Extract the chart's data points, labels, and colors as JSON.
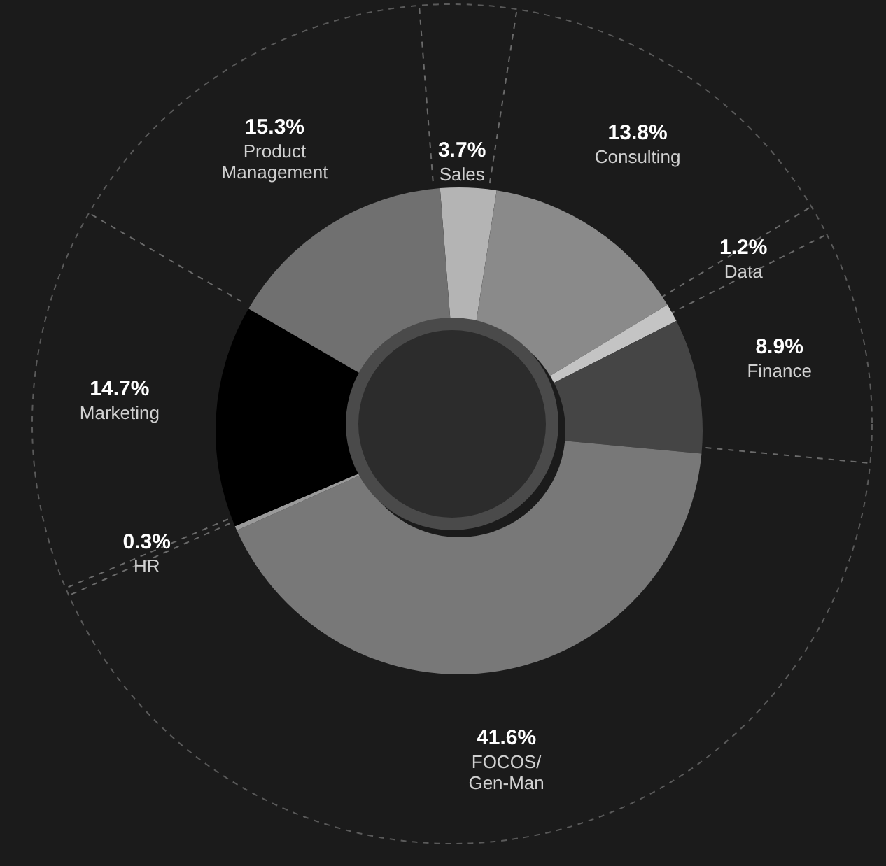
{
  "chart_data": {
    "type": "donut",
    "categories": [
      "Sales",
      "Consulting",
      "Data",
      "Finance",
      "FOCOS/\nGen-Man",
      "HR",
      "Marketing",
      "Product\nManagement"
    ],
    "values": [
      3.7,
      13.8,
      1.2,
      8.9,
      41.6,
      0.3,
      14.7,
      15.3
    ],
    "value_labels": [
      "3.7%",
      "13.8%",
      "1.2%",
      "8.9%",
      "41.6%",
      "0.3%",
      "14.7%",
      "15.3%"
    ],
    "colors": [
      "#b4b4b4",
      "#8a8a8a",
      "#c4c4c4",
      "#454545",
      "#787878",
      "#9a9a9a",
      "#000000",
      "#707070"
    ],
    "legend": false
  }
}
